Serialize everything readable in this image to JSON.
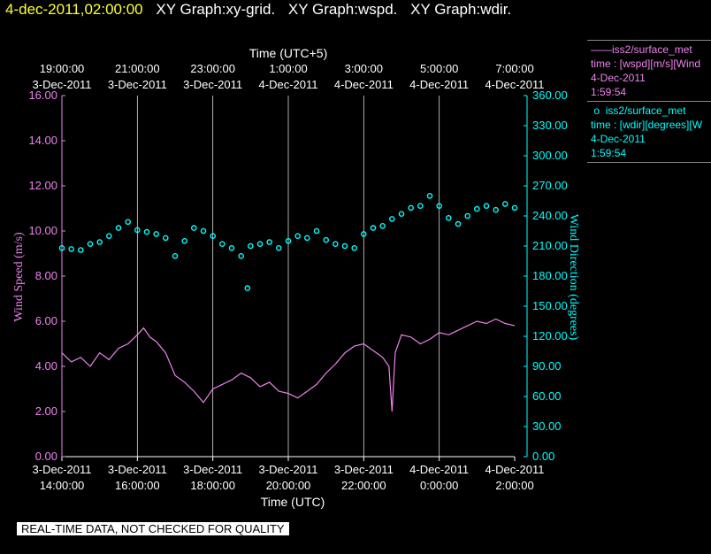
{
  "header": {
    "timestamp": "4-dec-2011,02:00:00",
    "graphs": [
      "XY Graph:xy-grid.",
      "XY Graph:wspd.",
      "XY Graph:wdir."
    ]
  },
  "legend": [
    {
      "marker": "——",
      "name": "iss2/surface_met",
      "line2": "time : [wspd][m/s][Wind",
      "line3": "4-Dec-2011",
      "line4": "1:59:54",
      "color": "#ee82ee"
    },
    {
      "marker": "o",
      "name": "iss2/surface_met",
      "line2": "time : [wdir][degrees][W",
      "line3": "4-Dec-2011",
      "line4": "1:59:54",
      "color": "#00ffff"
    }
  ],
  "footer": "REAL-TIME DATA, NOT CHECKED FOR QUALITY",
  "chart_data": {
    "type": "line",
    "title": "",
    "x_top": {
      "label": "Time (UTC+5)",
      "ticks": [
        {
          "time": "19:00:00",
          "date": "3-Dec-2011"
        },
        {
          "time": "21:00:00",
          "date": "3-Dec-2011"
        },
        {
          "time": "23:00:00",
          "date": "3-Dec-2011"
        },
        {
          "time": "1:00:00",
          "date": "4-Dec-2011"
        },
        {
          "time": "3:00:00",
          "date": "4-Dec-2011"
        },
        {
          "time": "5:00:00",
          "date": "4-Dec-2011"
        },
        {
          "time": "7:00:00",
          "date": "4-Dec-2011"
        }
      ]
    },
    "x_bottom": {
      "label": "Time (UTC)",
      "ticks": [
        {
          "date": "3-Dec-2011",
          "time": "14:00:00"
        },
        {
          "date": "3-Dec-2011",
          "time": "16:00:00"
        },
        {
          "date": "3-Dec-2011",
          "time": "18:00:00"
        },
        {
          "date": "3-Dec-2011",
          "time": "20:00:00"
        },
        {
          "date": "3-Dec-2011",
          "time": "22:00:00"
        },
        {
          "date": "4-Dec-2011",
          "time": "0:00:00"
        },
        {
          "date": "4-Dec-2011",
          "time": "2:00:00"
        }
      ]
    },
    "xlim": [
      "2011-12-03 14:00",
      "2011-12-04 02:00"
    ],
    "y_left": {
      "label": "Wind Speed (m/s)",
      "ylim": [
        0,
        16
      ],
      "ticks": [
        "0.00",
        "2.00",
        "4.00",
        "6.00",
        "8.00",
        "10.00",
        "12.00",
        "14.00",
        "16.00"
      ],
      "color": "#ee82ee"
    },
    "y_right": {
      "label": "Wind Direction (degrees)",
      "ylim": [
        0,
        360
      ],
      "ticks": [
        "0.00",
        "30.00",
        "60.00",
        "90.00",
        "120.00",
        "150.00",
        "180.00",
        "210.00",
        "240.00",
        "270.00",
        "300.00",
        "330.00",
        "360.00"
      ],
      "color": "#00ffff"
    },
    "grid": "vertical",
    "series": [
      {
        "name": "wspd",
        "style": "line",
        "axis": "left",
        "color": "#ee82ee",
        "x": [
          "2011-12-03 14:00",
          "2011-12-03 14:15",
          "2011-12-03 14:30",
          "2011-12-03 14:45",
          "2011-12-03 15:00",
          "2011-12-03 15:15",
          "2011-12-03 15:30",
          "2011-12-03 15:45",
          "2011-12-03 16:00",
          "2011-12-03 16:10",
          "2011-12-03 16:20",
          "2011-12-03 16:30",
          "2011-12-03 16:45",
          "2011-12-03 17:00",
          "2011-12-03 17:15",
          "2011-12-03 17:30",
          "2011-12-03 17:45",
          "2011-12-03 18:00",
          "2011-12-03 18:15",
          "2011-12-03 18:30",
          "2011-12-03 18:45",
          "2011-12-03 19:00",
          "2011-12-03 19:15",
          "2011-12-03 19:30",
          "2011-12-03 19:45",
          "2011-12-03 20:00",
          "2011-12-03 20:15",
          "2011-12-03 20:30",
          "2011-12-03 20:45",
          "2011-12-03 21:00",
          "2011-12-03 21:15",
          "2011-12-03 21:30",
          "2011-12-03 21:45",
          "2011-12-03 22:00",
          "2011-12-03 22:15",
          "2011-12-03 22:30",
          "2011-12-03 22:40",
          "2011-12-03 22:45",
          "2011-12-03 22:50",
          "2011-12-03 23:00",
          "2011-12-03 23:15",
          "2011-12-03 23:30",
          "2011-12-03 23:45",
          "2011-12-04 00:00",
          "2011-12-04 00:15",
          "2011-12-04 00:30",
          "2011-12-04 00:45",
          "2011-12-04 01:00",
          "2011-12-04 01:15",
          "2011-12-04 01:30",
          "2011-12-04 01:45",
          "2011-12-04 02:00"
        ],
        "values": [
          4.6,
          4.2,
          4.4,
          4.0,
          4.6,
          4.3,
          4.8,
          5.0,
          5.4,
          5.7,
          5.3,
          5.1,
          4.6,
          3.6,
          3.3,
          2.9,
          2.4,
          3.0,
          3.2,
          3.4,
          3.7,
          3.5,
          3.1,
          3.3,
          2.9,
          2.8,
          2.6,
          2.9,
          3.2,
          3.7,
          4.1,
          4.6,
          4.9,
          5.0,
          4.7,
          4.4,
          4.0,
          2.0,
          4.6,
          5.4,
          5.3,
          5.0,
          5.2,
          5.5,
          5.4,
          5.6,
          5.8,
          6.0,
          5.9,
          6.1,
          5.9,
          5.8
        ]
      },
      {
        "name": "wdir",
        "style": "points",
        "axis": "right",
        "color": "#00ffff",
        "x": [
          "2011-12-03 14:00",
          "2011-12-03 14:15",
          "2011-12-03 14:30",
          "2011-12-03 14:45",
          "2011-12-03 15:00",
          "2011-12-03 15:15",
          "2011-12-03 15:30",
          "2011-12-03 15:45",
          "2011-12-03 16:00",
          "2011-12-03 16:15",
          "2011-12-03 16:30",
          "2011-12-03 16:45",
          "2011-12-03 17:00",
          "2011-12-03 17:15",
          "2011-12-03 17:30",
          "2011-12-03 17:45",
          "2011-12-03 18:00",
          "2011-12-03 18:15",
          "2011-12-03 18:30",
          "2011-12-03 18:45",
          "2011-12-03 18:55",
          "2011-12-03 19:00",
          "2011-12-03 19:15",
          "2011-12-03 19:30",
          "2011-12-03 19:45",
          "2011-12-03 20:00",
          "2011-12-03 20:15",
          "2011-12-03 20:30",
          "2011-12-03 20:45",
          "2011-12-03 21:00",
          "2011-12-03 21:15",
          "2011-12-03 21:30",
          "2011-12-03 21:45",
          "2011-12-03 22:00",
          "2011-12-03 22:15",
          "2011-12-03 22:30",
          "2011-12-03 22:45",
          "2011-12-03 23:00",
          "2011-12-03 23:15",
          "2011-12-03 23:30",
          "2011-12-03 23:45",
          "2011-12-04 00:00",
          "2011-12-04 00:15",
          "2011-12-04 00:30",
          "2011-12-04 00:45",
          "2011-12-04 01:00",
          "2011-12-04 01:15",
          "2011-12-04 01:30",
          "2011-12-04 01:45",
          "2011-12-04 02:00"
        ],
        "values": [
          208,
          207,
          206,
          212,
          214,
          220,
          228,
          234,
          226,
          224,
          222,
          218,
          200,
          215,
          228,
          225,
          220,
          212,
          208,
          200,
          168,
          210,
          212,
          214,
          208,
          215,
          220,
          218,
          225,
          216,
          212,
          210,
          208,
          222,
          228,
          230,
          237,
          242,
          248,
          250,
          260,
          250,
          238,
          232,
          240,
          247,
          250,
          246,
          252,
          248
        ]
      }
    ]
  }
}
